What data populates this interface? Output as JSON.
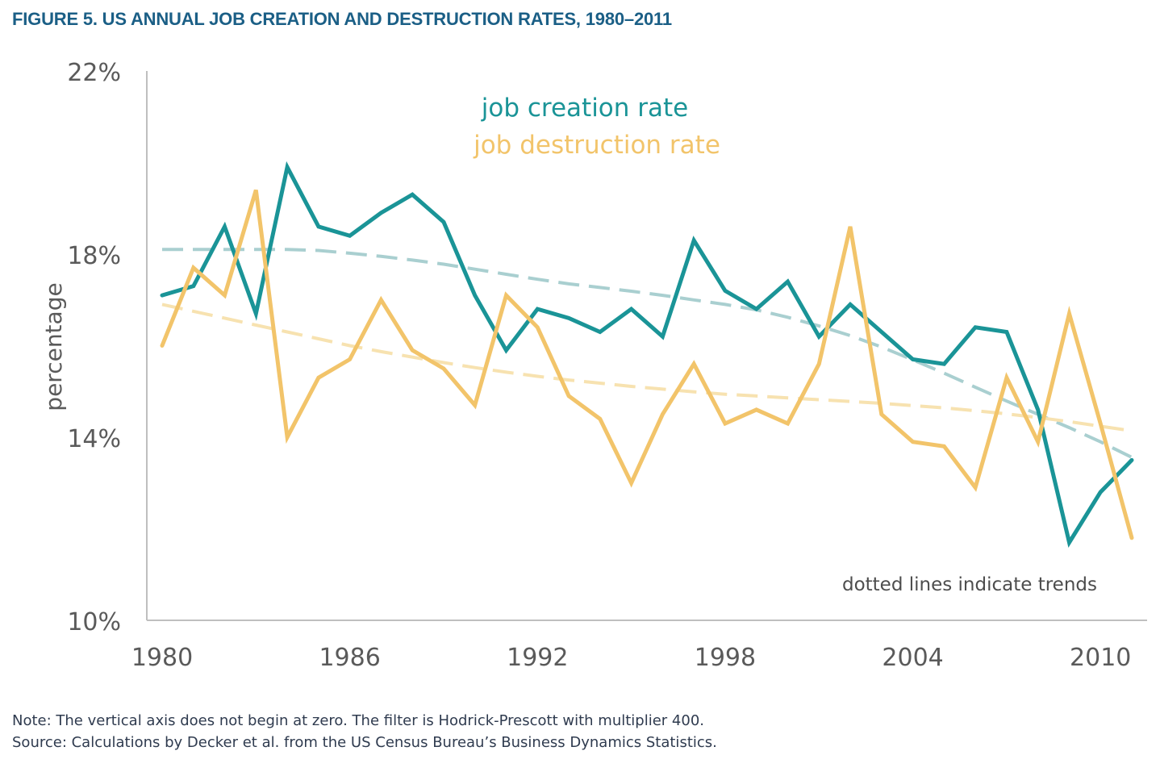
{
  "figure": {
    "title": "FIGURE 5. US ANNUAL JOB CREATION AND DESTRUCTION RATES, 1980–2011",
    "note": "Note: The vertical axis does not begin at zero. The filter is Hodrick-Prescott with multiplier 400.",
    "source": "Source: Calculations by Decker et al. from the US Census Bureau’s Business Dynamics Statistics."
  },
  "chart_data": {
    "type": "line",
    "ylabel": "percentage",
    "xlabel": "",
    "ylim": [
      10,
      22
    ],
    "xlim": [
      1980,
      2011
    ],
    "y_ticks": [
      10,
      14,
      18,
      22
    ],
    "y_tick_labels": [
      "10%",
      "14%",
      "18%",
      "22%"
    ],
    "x_ticks": [
      1980,
      1986,
      1992,
      1998,
      2004,
      2010
    ],
    "x_tick_labels": [
      "1980",
      "1986",
      "1992",
      "1998",
      "2004",
      "2010"
    ],
    "legend_placement": "top-center",
    "annotation": "dotted lines indicate trends",
    "grid": false,
    "x": [
      1980,
      1981,
      1982,
      1983,
      1984,
      1985,
      1986,
      1987,
      1988,
      1989,
      1990,
      1991,
      1992,
      1993,
      1994,
      1995,
      1996,
      1997,
      1998,
      1999,
      2000,
      2001,
      2002,
      2003,
      2004,
      2005,
      2006,
      2007,
      2008,
      2009,
      2010,
      2011
    ],
    "series": [
      {
        "name": "job creation rate",
        "color": "#1a9497",
        "style": "solid",
        "values": [
          17.1,
          17.3,
          18.6,
          16.7,
          19.9,
          18.6,
          18.4,
          18.9,
          19.3,
          18.7,
          17.1,
          15.9,
          16.8,
          16.6,
          16.3,
          16.8,
          16.2,
          18.3,
          17.2,
          16.8,
          17.4,
          16.2,
          16.9,
          16.3,
          15.7,
          15.6,
          16.4,
          16.3,
          14.6,
          11.7,
          12.8,
          13.5
        ],
        "trend": [
          18.1,
          18.1,
          18.1,
          18.1,
          18.1,
          18.08,
          18.02,
          17.95,
          17.87,
          17.78,
          17.67,
          17.56,
          17.45,
          17.35,
          17.27,
          17.19,
          17.1,
          17.0,
          16.9,
          16.78,
          16.62,
          16.43,
          16.22,
          15.97,
          15.69,
          15.4,
          15.09,
          14.79,
          14.5,
          14.21,
          13.9,
          13.56
        ]
      },
      {
        "name": "job destruction rate",
        "color": "#f2c46a",
        "style": "solid",
        "values": [
          16.0,
          17.7,
          17.1,
          19.4,
          14.0,
          15.3,
          15.7,
          17.0,
          15.9,
          15.5,
          14.7,
          17.1,
          16.4,
          14.9,
          14.4,
          13.0,
          14.5,
          15.6,
          14.3,
          14.6,
          14.3,
          15.6,
          18.6,
          14.5,
          13.9,
          13.8,
          12.9,
          15.3,
          13.9,
          16.7,
          14.3,
          11.8
        ],
        "trend": [
          16.9,
          16.75,
          16.6,
          16.45,
          16.3,
          16.15,
          16.0,
          15.87,
          15.75,
          15.63,
          15.52,
          15.42,
          15.33,
          15.25,
          15.18,
          15.11,
          15.05,
          14.99,
          14.94,
          14.9,
          14.86,
          14.82,
          14.78,
          14.74,
          14.69,
          14.64,
          14.58,
          14.51,
          14.43,
          14.34,
          14.24,
          14.14
        ]
      }
    ]
  }
}
